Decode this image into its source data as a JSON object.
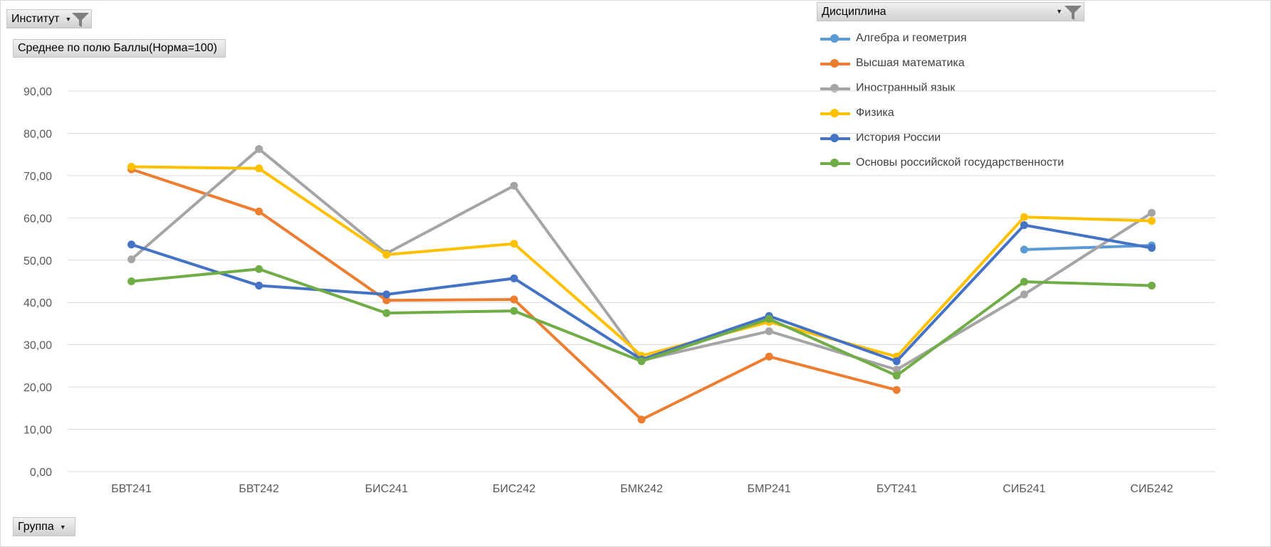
{
  "filters": {
    "institute": {
      "label": "Институт"
    },
    "discipline": {
      "label": "Дисциплина"
    },
    "group": {
      "label": "Группа"
    }
  },
  "value_field": {
    "label": "Среднее по полю Баллы(Норма=100)"
  },
  "chart_data": {
    "type": "line",
    "categories": [
      "БВТ241",
      "БВТ242",
      "БИС241",
      "БИС242",
      "БМК242",
      "БМР241",
      "БУТ241",
      "СИБ241",
      "СИБ242"
    ],
    "ylim": [
      0,
      90
    ],
    "yticks": [
      "0,00",
      "10,00",
      "20,00",
      "30,00",
      "40,00",
      "50,00",
      "60,00",
      "70,00",
      "80,00",
      "90,00"
    ],
    "grid": true,
    "legend_position": "top-right",
    "series": [
      {
        "name": "Алгебра и геометрия",
        "color": "#5b9bd5",
        "values": [
          null,
          null,
          null,
          null,
          null,
          null,
          null,
          52.5,
          53.5
        ]
      },
      {
        "name": "Высшая математика",
        "color": "#ed7d31",
        "values": [
          71.5,
          61.5,
          40.5,
          40.7,
          12.3,
          27.2,
          19.3,
          null,
          null
        ]
      },
      {
        "name": "Иностранный язык",
        "color": "#a5a5a5",
        "values": [
          50.2,
          76.3,
          51.6,
          67.6,
          26.3,
          33.2,
          24.1,
          41.9,
          61.2
        ]
      },
      {
        "name": "Физика",
        "color": "#ffc000",
        "values": [
          72.1,
          71.7,
          51.3,
          53.9,
          27.4,
          35.4,
          27.2,
          60.2,
          59.3
        ]
      },
      {
        "name": "История России",
        "color": "#4472c4",
        "values": [
          53.7,
          44.0,
          41.9,
          45.7,
          26.5,
          36.8,
          26.1,
          58.3,
          52.9
        ]
      },
      {
        "name": "Основы российской государственности",
        "color": "#70ad47",
        "values": [
          45.0,
          47.9,
          37.5,
          38.0,
          26.1,
          36.1,
          22.7,
          44.9,
          44.0
        ]
      }
    ]
  }
}
